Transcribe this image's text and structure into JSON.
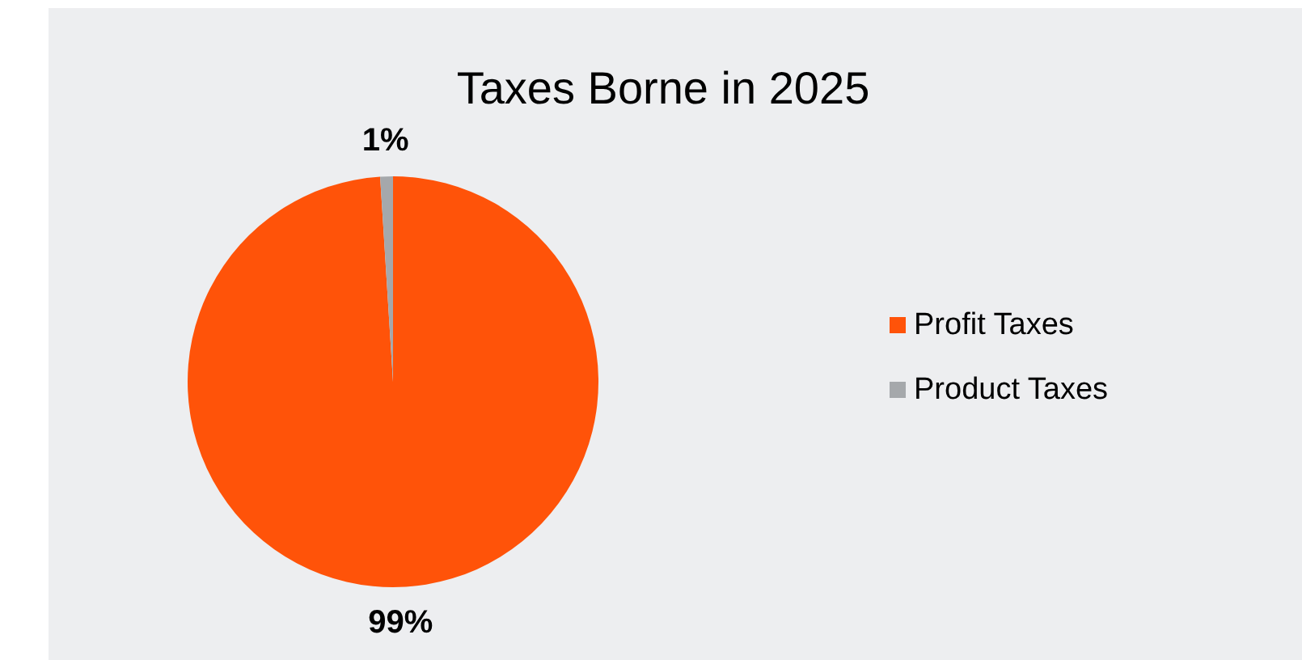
{
  "chart_data": {
    "type": "pie",
    "title": "Taxes Borne in 2025",
    "categories": [
      "Profit Taxes",
      "Product Taxes"
    ],
    "values": [
      99,
      1
    ],
    "colors": [
      "#ff5309",
      "#a5a8ab"
    ],
    "value_labels": [
      "99%",
      "1%"
    ],
    "legend": "right"
  }
}
